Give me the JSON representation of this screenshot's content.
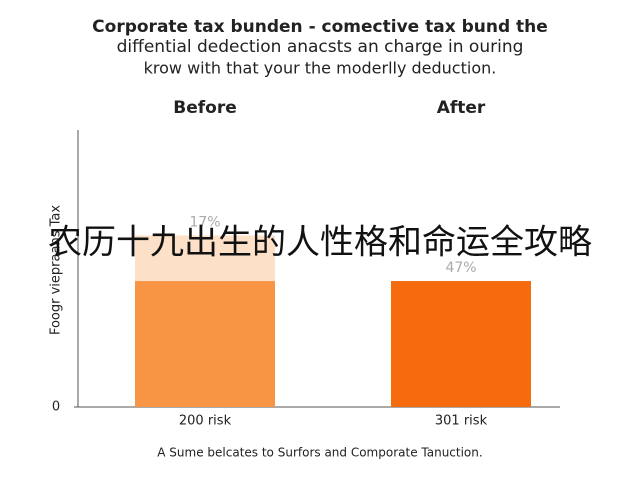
{
  "chart_data": {
    "type": "bar",
    "title": [
      "Corporate tax bunden - comective tax bund the",
      "diffential dedection anacsts an charge in ouring",
      "krow with that your the moderlly deduction."
    ],
    "column_headers": [
      "Before",
      "After"
    ],
    "y_label": "Foogr viepraans Tax",
    "categories": [
      "200 risk",
      "301 risk"
    ],
    "series": [
      {
        "color": "#f89544",
        "values": [
          47,
          47
        ],
        "value_labels": [
          null,
          "47%"
        ]
      },
      {
        "color": "#fde0c8",
        "values": [
          17,
          null
        ],
        "value_labels": [
          "17%",
          null
        ]
      }
    ],
    "second_bar_color": "#f76b0f",
    "ylim": [
      0,
      100
    ],
    "yticks": [
      0
    ],
    "caption": "A Sume belcates to Surfors and Comporate Tanuction.",
    "overlay_text": "农历十九出生的人性格和命运全攻略"
  }
}
